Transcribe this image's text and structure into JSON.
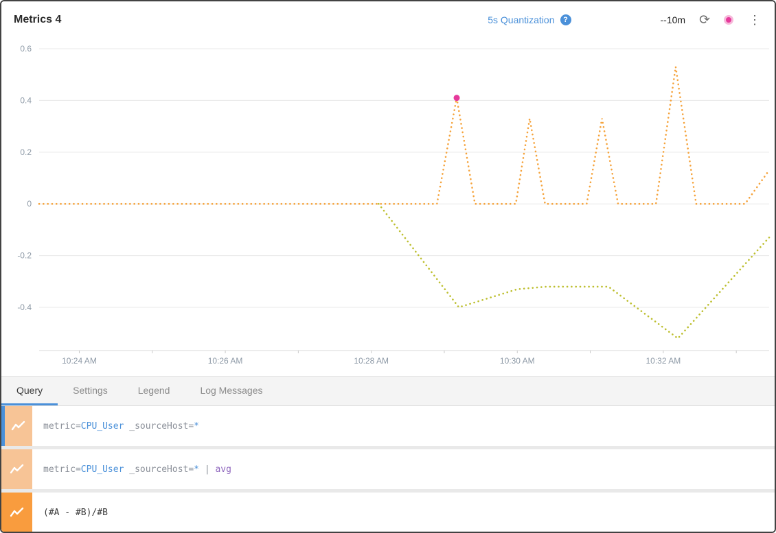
{
  "header": {
    "title": "Metrics 4",
    "quantization_label": "5s Quantization",
    "time_range": "--10m"
  },
  "icons": {
    "help_glyph": "?",
    "refresh_glyph": "⟳",
    "kebab_glyph": "⋮"
  },
  "tabs": {
    "items": [
      {
        "label": "Query",
        "active": true
      },
      {
        "label": "Settings",
        "active": false
      },
      {
        "label": "Legend",
        "active": false
      },
      {
        "label": "Log Messages",
        "active": false
      }
    ]
  },
  "queries": [
    {
      "id": "A",
      "selected": true,
      "icon_color": "#f7c496",
      "tokens": [
        {
          "t": "metric=",
          "c": "plain"
        },
        {
          "t": "CPU_User",
          "c": "value"
        },
        {
          "t": " _sourceHost=",
          "c": "plain"
        },
        {
          "t": "*",
          "c": "value"
        }
      ]
    },
    {
      "id": "B",
      "selected": false,
      "icon_color": "#f7c496",
      "tokens": [
        {
          "t": "metric=",
          "c": "plain"
        },
        {
          "t": "CPU_User",
          "c": "value"
        },
        {
          "t": " _sourceHost=",
          "c": "plain"
        },
        {
          "t": "*",
          "c": "value"
        },
        {
          "t": " | ",
          "c": "plain"
        },
        {
          "t": "avg",
          "c": "op"
        }
      ]
    },
    {
      "id": "C",
      "selected": false,
      "icon_color": "#f99c3e",
      "tokens": [
        {
          "t": "(#A - #B)/#B",
          "c": "dark"
        }
      ]
    }
  ],
  "colors": {
    "accent": "#4a90d9",
    "series_a": "#f5a33c",
    "series_b": "#bdbf2f",
    "magenta": "#e6399b",
    "token_plain": "#8a8f98",
    "token_value": "#4a90d9",
    "token_op": "#9068be",
    "token_dark": "#3c3c3c",
    "grid": "#e8e8e8",
    "axis_text": "#8d99a6"
  },
  "chart_data": {
    "type": "line",
    "title": "",
    "x_unit": "minutes since 10:23 AM",
    "x_domain": [
      0.45,
      10.45
    ],
    "y_domain": [
      -0.567,
      0.6
    ],
    "y_ticks": [
      0.6,
      0.4,
      0.2,
      0,
      -0.2,
      -0.4
    ],
    "x_ticks": [
      {
        "t": 1,
        "label": "10:24 AM"
      },
      {
        "t": 3,
        "label": "10:26 AM"
      },
      {
        "t": 5,
        "label": "10:28 AM"
      },
      {
        "t": 7,
        "label": "10:30 AM"
      },
      {
        "t": 9,
        "label": "10:32 AM"
      }
    ],
    "grid": true,
    "legend": "none",
    "series": [
      {
        "name": "A: metric=CPU_User _sourceHost=*",
        "color": "#f5a33c",
        "style": "dotted",
        "points": [
          [
            0.45,
            0
          ],
          [
            5.9,
            0
          ],
          [
            6.17,
            0.41
          ],
          [
            6.42,
            0
          ],
          [
            6.98,
            0
          ],
          [
            7.17,
            0.33
          ],
          [
            7.38,
            0
          ],
          [
            7.95,
            0
          ],
          [
            8.16,
            0.33
          ],
          [
            8.38,
            0
          ],
          [
            8.9,
            0
          ],
          [
            9.17,
            0.53
          ],
          [
            9.45,
            0
          ],
          [
            10.12,
            0
          ],
          [
            10.45,
            0.13
          ]
        ]
      },
      {
        "name": "B: metric=CPU_User _sourceHost=* | avg",
        "color": "#bdbf2f",
        "style": "dotted",
        "points": [
          [
            5.1,
            0
          ],
          [
            6.2,
            -0.4
          ],
          [
            7.0,
            -0.33
          ],
          [
            7.4,
            -0.32
          ],
          [
            8.25,
            -0.32
          ],
          [
            9.2,
            -0.52
          ],
          [
            10.45,
            -0.13
          ]
        ]
      }
    ],
    "highlight_point": {
      "series": 0,
      "x": 6.17,
      "y": 0.41,
      "color": "#e6399b"
    }
  }
}
